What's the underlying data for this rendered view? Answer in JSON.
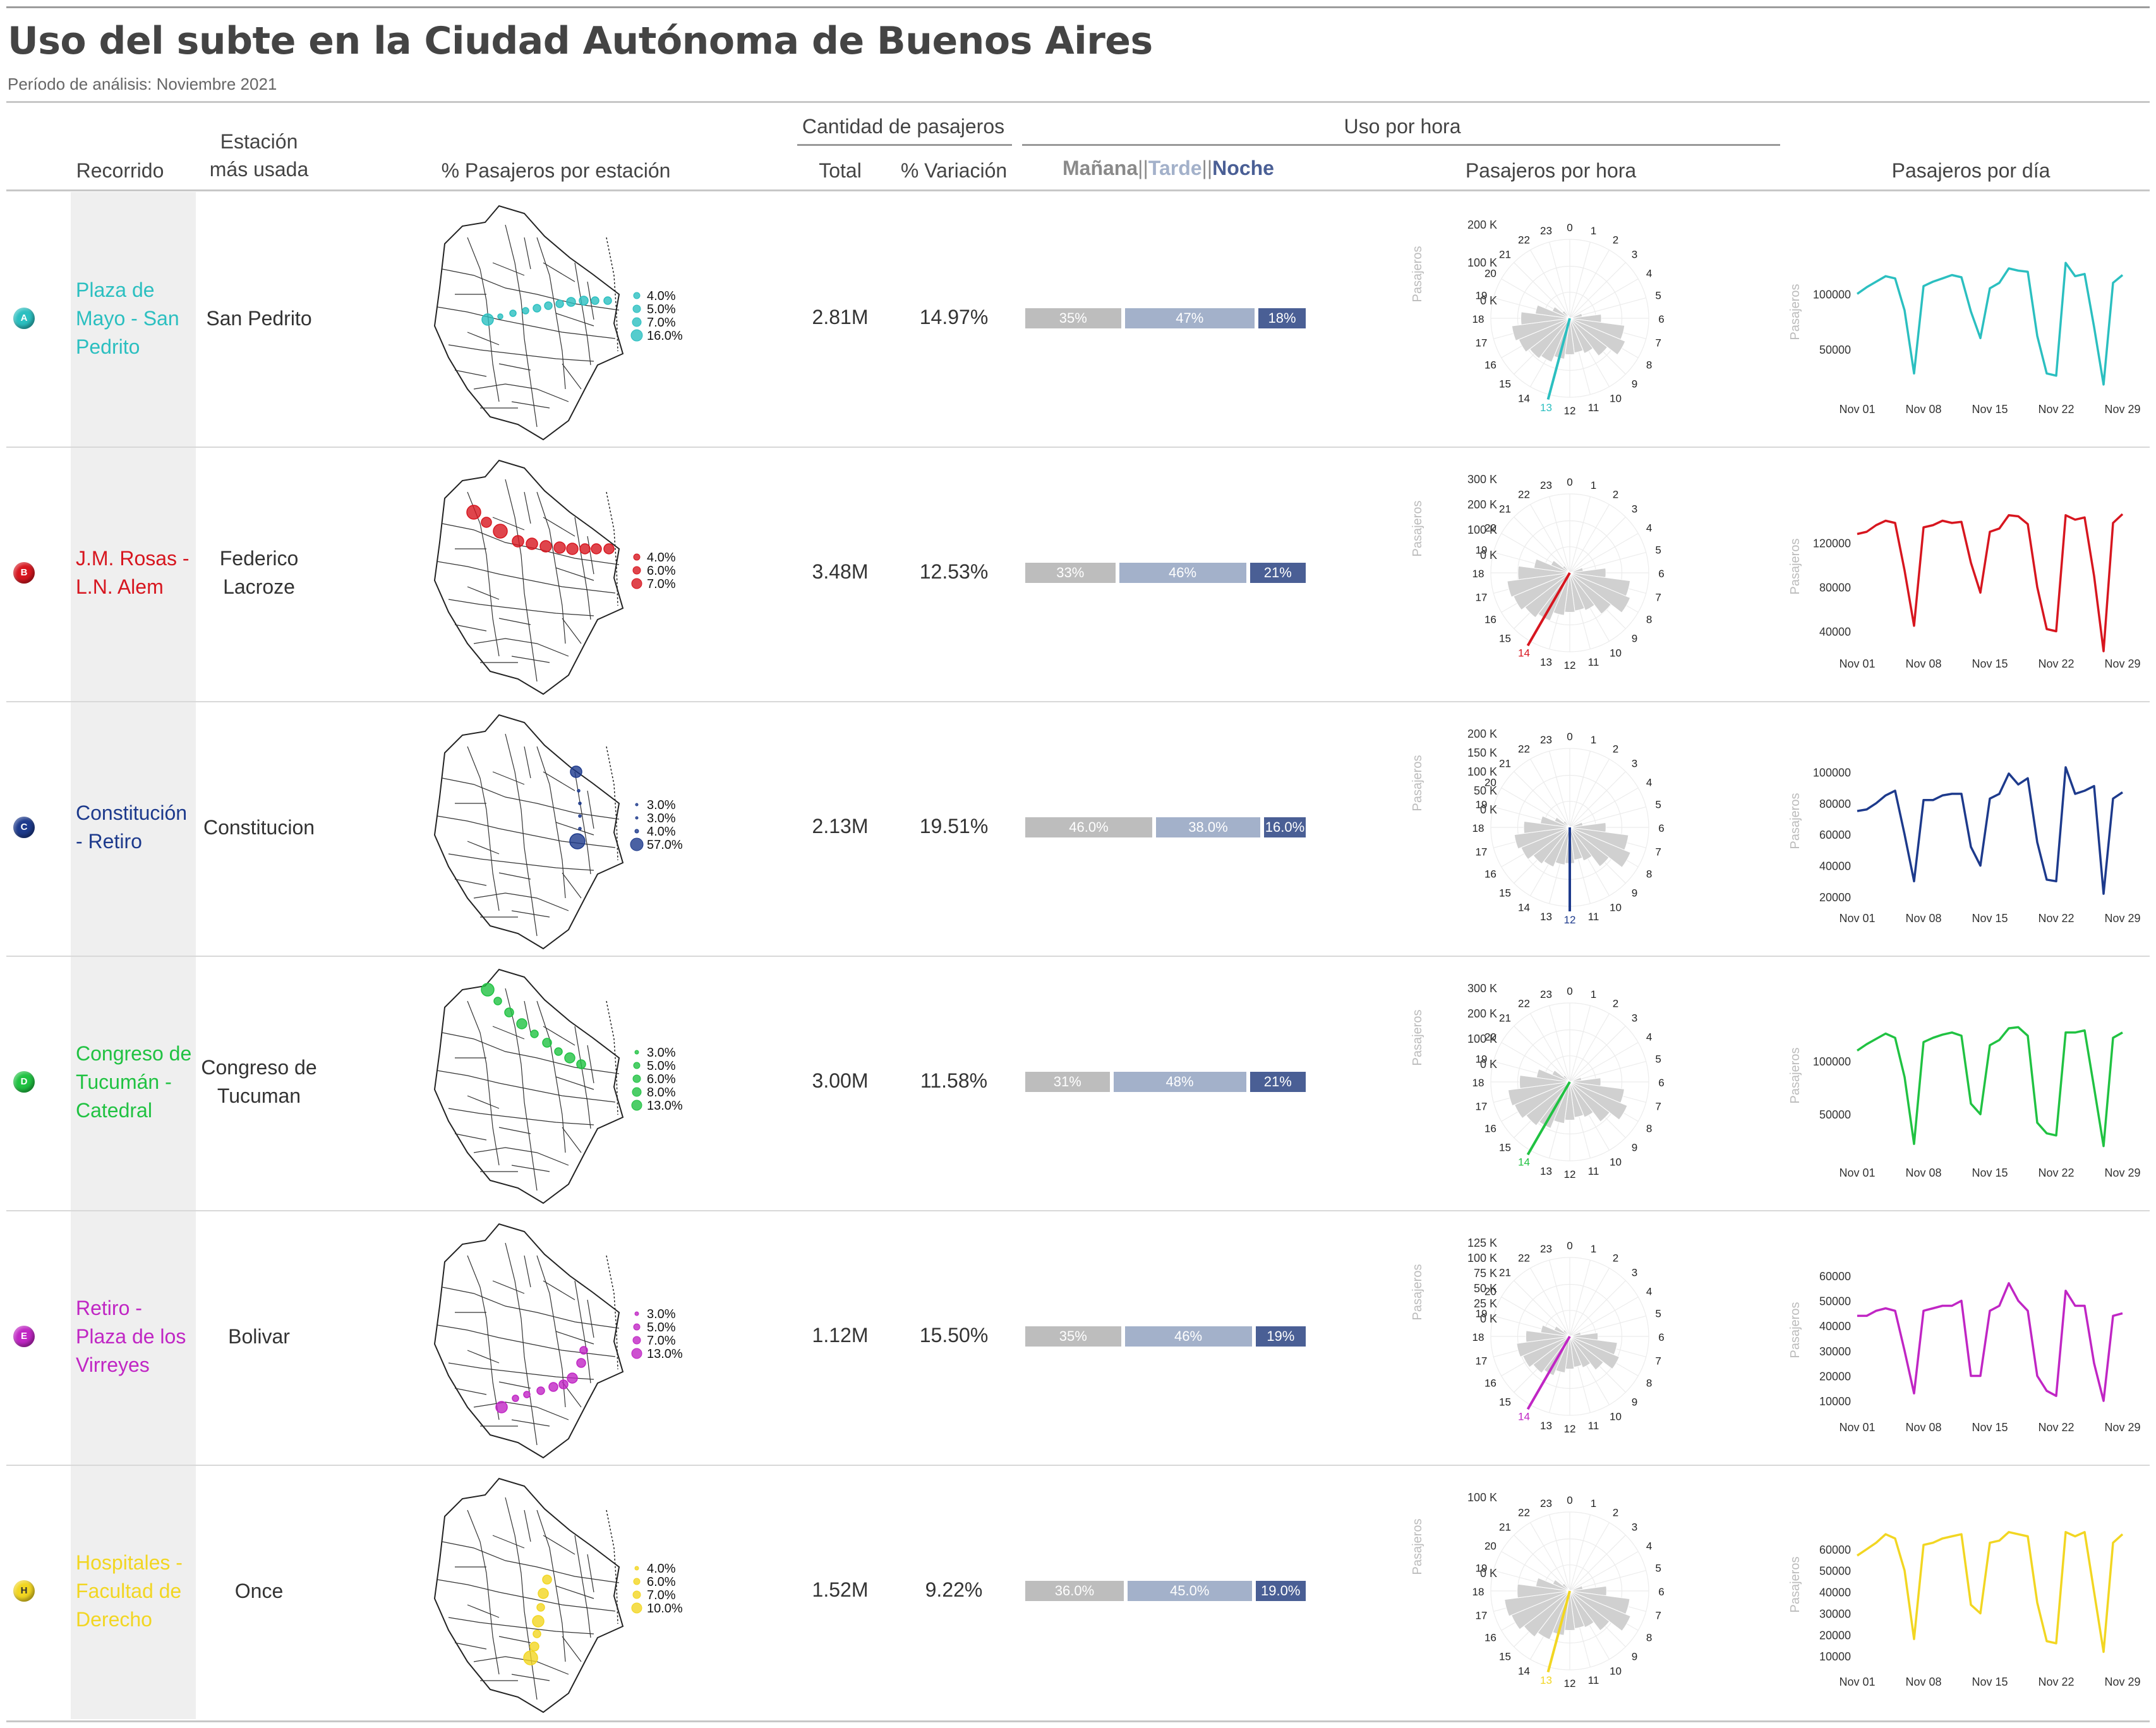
{
  "header": {
    "title": "Uso del subte en la Ciudad Autónoma de Buenos Aires",
    "subtitle": "Período de análisis: Noviembre 2021"
  },
  "columns": {
    "recorrido": "Recorrido",
    "estacion_l1": "Estación",
    "estacion_l2": "más usada",
    "pct_estacion": "% Pasajeros por estación",
    "group_cantidad": "Cantidad de pasajeros",
    "total": "Total",
    "variacion": "% Variación",
    "group_uso": "Uso por hora",
    "legend_manana": "Mañana",
    "legend_sep1": "||",
    "legend_tarde": "Tarde",
    "legend_sep2": "||",
    "legend_noche": "Noche",
    "pasajeros_hora": "Pasajeros por hora",
    "pasajeros_dia": "Pasajeros por día"
  },
  "colors": {
    "manana": "#bdbdbd",
    "tarde": "#a3b1ca",
    "noche": "#4a5f95",
    "grey_column": "#efefef"
  },
  "axis_common": {
    "radial_ylabel": "Pasajeros",
    "line_ylabel": "Pasajeros",
    "hours": [
      "0",
      "1",
      "2",
      "3",
      "4",
      "5",
      "6",
      "7",
      "8",
      "9",
      "10",
      "11",
      "12",
      "13",
      "14",
      "15",
      "16",
      "17",
      "18",
      "19",
      "20",
      "21",
      "22",
      "23"
    ],
    "date_ticks": [
      "Nov 01",
      "Nov 08",
      "Nov 15",
      "Nov 22",
      "Nov 29"
    ]
  },
  "chart_data": [
    {
      "type": "table",
      "title": "Uso del subte en la Ciudad Autónoma de Buenos Aires",
      "subtitle": "Período de análisis: Noviembre 2021",
      "rows": [
        {
          "line": "A",
          "color": "#2bbfc0",
          "recorrido": "Plaza de Mayo - San Pedrito",
          "estacion": "San Pedrito",
          "total": "2.81M",
          "variacion": "14.97%",
          "split": {
            "labels": [
              "35%",
              "47%",
              "18%"
            ],
            "values": [
              35,
              47,
              18
            ]
          },
          "station_legend": [
            "4.0%",
            "5.0%",
            "7.0%",
            "16.0%"
          ],
          "hourly": {
            "ticks": [
              "200 K",
              "100 K",
              "0 K"
            ],
            "max": 250000,
            "peak_hour": "13",
            "values": [
              0,
              0,
              0,
              0,
              0,
              40000,
              100000,
              175000,
              190000,
              150000,
              120000,
              110000,
              115000,
              130000,
              150000,
              160000,
              175000,
              185000,
              155000,
              110000,
              60000,
              30000,
              10000,
              0
            ]
          },
          "daily": {
            "yticks": [
              50000,
              100000
            ],
            "ymin": 15000,
            "ymax": 135000,
            "values": [
              100000,
              106000,
              111000,
              116000,
              114000,
              85000,
              28000,
              107000,
              111000,
              114000,
              117000,
              115000,
              84000,
              60000,
              105000,
              110000,
              123000,
              121000,
              120000,
              62000,
              28000,
              26000,
              128000,
              116000,
              118000,
              70000,
              18000,
              110000,
              117000
            ]
          }
        },
        {
          "line": "B",
          "color": "#d7161f",
          "recorrido": "J.M. Rosas - L.N. Alem",
          "estacion": "Federico Lacroze",
          "total": "3.48M",
          "variacion": "12.53%",
          "split": {
            "labels": [
              "33%",
              "46%",
              "21%"
            ],
            "values": [
              33,
              46,
              21
            ]
          },
          "station_legend": [
            "4.0%",
            "6.0%",
            "7.0%"
          ],
          "hourly": {
            "ticks": [
              "300 K",
              "200 K",
              "100 K",
              "0 K"
            ],
            "max": 350000,
            "peak_hour": "14",
            "values": [
              0,
              0,
              0,
              0,
              0,
              60000,
              160000,
              270000,
              290000,
              230000,
              180000,
              170000,
              175000,
              190000,
              230000,
              250000,
              270000,
              280000,
              230000,
              160000,
              90000,
              40000,
              15000,
              0
            ]
          },
          "daily": {
            "yticks": [
              40000,
              80000,
              120000
            ],
            "ymin": 30000,
            "ymax": 150000,
            "values": [
              128000,
              130000,
              136000,
              140000,
              138000,
              95000,
              45000,
              134000,
              136000,
              140000,
              138000,
              139000,
              102000,
              75000,
              130000,
              133000,
              145000,
              144000,
              137000,
              80000,
              42000,
              40000,
              145000,
              141000,
              143000,
              90000,
              22000,
              138000,
              146000
            ]
          }
        },
        {
          "line": "C",
          "color": "#1d3a8c",
          "recorrido": "Constitución - Retiro",
          "estacion": "Constitucion",
          "total": "2.13M",
          "variacion": "19.51%",
          "split": {
            "labels": [
              "46.0%",
              "38.0%",
              "16.0%"
            ],
            "values": [
              46,
              38,
              16
            ]
          },
          "station_legend": [
            "3.0%",
            "3.0%",
            "4.0%",
            "57.0%"
          ],
          "hourly": {
            "ticks": [
              "200 K",
              "150 K",
              "100 K",
              "50 K",
              "0 K"
            ],
            "max": 240000,
            "peak_hour": "12",
            "values": [
              0,
              0,
              0,
              0,
              0,
              40000,
              110000,
              180000,
              200000,
              150000,
              110000,
              100000,
              110000,
              115000,
              130000,
              140000,
              160000,
              170000,
              140000,
              90000,
              50000,
              25000,
              8000,
              0
            ]
          },
          "daily": {
            "yticks": [
              20000,
              40000,
              60000,
              80000,
              100000
            ],
            "ymin": 20000,
            "ymax": 105000,
            "values": [
              75000,
              76000,
              80000,
              85000,
              88000,
              60000,
              30000,
              82000,
              82000,
              85000,
              86000,
              86000,
              52000,
              40000,
              83000,
              86000,
              99000,
              92000,
              96000,
              55000,
              31000,
              30000,
              103000,
              86000,
              88000,
              91000,
              22000,
              83000,
              87000
            ]
          }
        },
        {
          "line": "D",
          "color": "#20c242",
          "recorrido": "Congreso de Tucumán - Catedral",
          "estacion": "Congreso de Tucuman",
          "total": "3.00M",
          "variacion": "11.58%",
          "split": {
            "labels": [
              "31%",
              "48%",
              "21%"
            ],
            "values": [
              31,
              48,
              21
            ]
          },
          "station_legend": [
            "3.0%",
            "5.0%",
            "6.0%",
            "8.0%",
            "13.0%"
          ],
          "hourly": {
            "ticks": [
              "300 K",
              "200 K",
              "100 K",
              "0 K"
            ],
            "max": 330000,
            "peak_hour": "14",
            "values": [
              0,
              0,
              0,
              0,
              0,
              50000,
              130000,
              230000,
              260000,
              210000,
              160000,
              150000,
              160000,
              175000,
              210000,
              230000,
              250000,
              260000,
              210000,
              140000,
              80000,
              35000,
              12000,
              0
            ]
          },
          "daily": {
            "yticks": [
              50000,
              100000
            ],
            "ymin": 15000,
            "ymax": 140000,
            "values": [
              110000,
              116000,
              121000,
              126000,
              122000,
              85000,
              22000,
              118000,
              122000,
              125000,
              127000,
              124000,
              60000,
              50000,
              115000,
              120000,
              131000,
              132000,
              124000,
              42000,
              32000,
              30000,
              127000,
              127000,
              129000,
              75000,
              20000,
              122000,
              127000
            ]
          }
        },
        {
          "line": "E",
          "color": "#c026c4",
          "recorrido": "Retiro - Plaza de los Virreyes",
          "estacion": "Bolivar",
          "total": "1.12M",
          "variacion": "15.50%",
          "split": {
            "labels": [
              "35%",
              "46%",
              "19%"
            ],
            "values": [
              35,
              46,
              19
            ]
          },
          "station_legend": [
            "3.0%",
            "5.0%",
            "7.0%",
            "13.0%"
          ],
          "hourly": {
            "ticks": [
              "125 K",
              "100 K",
              "75 K",
              "50 K",
              "25 K",
              "0 K"
            ],
            "max": 140000,
            "peak_hour": "14",
            "values": [
              0,
              0,
              0,
              0,
              0,
              20000,
              50000,
              85000,
              95000,
              75000,
              60000,
              55000,
              58000,
              65000,
              75000,
              82000,
              90000,
              95000,
              78000,
              52000,
              30000,
              15000,
              5000,
              0
            ]
          },
          "daily": {
            "yticks": [
              10000,
              20000,
              30000,
              40000,
              50000,
              60000
            ],
            "ymin": 8000,
            "ymax": 61000,
            "values": [
              44000,
              44000,
              46000,
              47000,
              46000,
              30000,
              13000,
              46000,
              47000,
              48000,
              48000,
              50000,
              20000,
              20000,
              46000,
              48000,
              57000,
              50000,
              46000,
              20000,
              14000,
              12000,
              54000,
              48000,
              48000,
              25000,
              10000,
              44000,
              45000
            ]
          }
        },
        {
          "line": "H",
          "color": "#f2d622",
          "recorrido": "Hospitales - Facultad de Derecho",
          "estacion": "Once",
          "total": "1.52M",
          "variacion": "9.22%",
          "split": {
            "labels": [
              "36.0%",
              "45.0%",
              "19.0%"
            ],
            "values": [
              36,
              45,
              19
            ]
          },
          "station_legend": [
            "4.0%",
            "6.0%",
            "7.0%",
            "10.0%"
          ],
          "hourly": {
            "ticks": [
              "100 K",
              "0 K"
            ],
            "max": 150000,
            "peak_hour": "13",
            "values": [
              0,
              0,
              0,
              0,
              0,
              25000,
              70000,
              115000,
              125000,
              95000,
              75000,
              72000,
              75000,
              85000,
              100000,
              110000,
              120000,
              125000,
              100000,
              65000,
              35000,
              18000,
              6000,
              0
            ]
          },
          "daily": {
            "yticks": [
              10000,
              20000,
              30000,
              40000,
              50000,
              60000
            ],
            "ymin": 8000,
            "ymax": 70000,
            "values": [
              57000,
              60000,
              63000,
              67000,
              65000,
              50000,
              18000,
              62000,
              63000,
              65000,
              66000,
              67000,
              34000,
              30000,
              63000,
              64000,
              68000,
              67000,
              66000,
              35000,
              17000,
              16000,
              68000,
              66000,
              68000,
              40000,
              12000,
              63000,
              67000
            ]
          }
        }
      ]
    }
  ]
}
